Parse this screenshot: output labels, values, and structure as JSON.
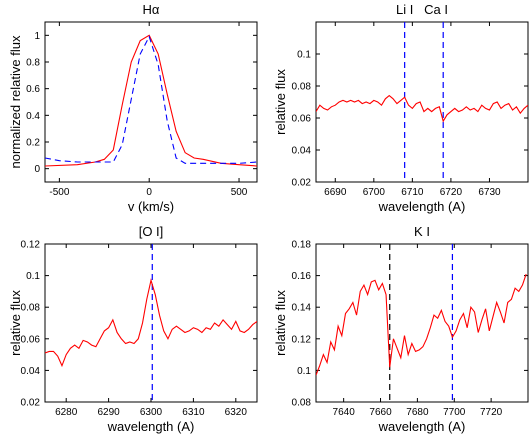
{
  "chart_data": [
    {
      "type": "line",
      "title": "Hα",
      "xlabel": "v (km/s)",
      "ylabel": "normalized relative flux",
      "xlim": [
        -580,
        600
      ],
      "ylim": [
        -0.1,
        1.1
      ],
      "xticks": [
        -500,
        0,
        500
      ],
      "yticks": [
        0,
        0.2,
        0.4,
        0.6,
        0.8,
        1
      ],
      "ytick_labels": [
        "0",
        "0.2",
        "0.4",
        "0.6",
        "0.8",
        "1"
      ],
      "vlines": [],
      "series": [
        {
          "style": "solid",
          "color": "#ff0000",
          "x": [
            -580,
            -400,
            -300,
            -250,
            -200,
            -150,
            -100,
            -50,
            0,
            50,
            100,
            150,
            200,
            250,
            300,
            400,
            500,
            600
          ],
          "y": [
            0.02,
            0.03,
            0.05,
            0.07,
            0.14,
            0.48,
            0.8,
            0.96,
            1.0,
            0.86,
            0.56,
            0.28,
            0.12,
            0.08,
            0.07,
            0.04,
            0.03,
            0.02
          ]
        },
        {
          "style": "dashed",
          "color": "#0000ff",
          "x": [
            -580,
            -500,
            -400,
            -300,
            -200,
            -150,
            -100,
            -50,
            0,
            50,
            100,
            150,
            200,
            300,
            400,
            500,
            600
          ],
          "y": [
            0.08,
            0.06,
            0.05,
            0.05,
            0.05,
            0.18,
            0.52,
            0.86,
            0.99,
            0.78,
            0.36,
            0.08,
            0.04,
            0.04,
            0.04,
            0.04,
            0.05
          ]
        }
      ]
    },
    {
      "type": "line",
      "title": "Li I   Ca I",
      "xlabel": "wavelength (A)",
      "ylabel": "relative flux",
      "xlim": [
        6685,
        6740
      ],
      "ylim": [
        0.02,
        0.12
      ],
      "xticks": [
        6690,
        6700,
        6710,
        6720,
        6730
      ],
      "yticks": [
        0.02,
        0.04,
        0.06,
        0.08,
        0.1
      ],
      "ytick_labels": [
        "0.02",
        "0.04",
        "0.06",
        "0.08",
        "0.1"
      ],
      "vlines": [
        {
          "x": 6708,
          "style": "dashed",
          "color": "#0000ff"
        },
        {
          "x": 6718,
          "style": "dashed",
          "color": "#0000ff"
        }
      ],
      "series": [
        {
          "style": "solid",
          "color": "#ff0000",
          "x": [
            6685,
            6686,
            6687,
            6688,
            6689,
            6690,
            6691,
            6692,
            6693,
            6694,
            6695,
            6696,
            6697,
            6698,
            6699,
            6700,
            6701,
            6702,
            6703,
            6704,
            6705,
            6706,
            6707,
            6708,
            6709,
            6710,
            6711,
            6712,
            6713,
            6714,
            6715,
            6716,
            6717,
            6718,
            6719,
            6720,
            6721,
            6722,
            6723,
            6724,
            6725,
            6726,
            6727,
            6728,
            6729,
            6730,
            6731,
            6732,
            6733,
            6734,
            6735,
            6736,
            6737,
            6738,
            6739,
            6740
          ],
          "y": [
            0.064,
            0.068,
            0.066,
            0.065,
            0.067,
            0.068,
            0.07,
            0.071,
            0.07,
            0.071,
            0.07,
            0.071,
            0.069,
            0.07,
            0.069,
            0.071,
            0.07,
            0.068,
            0.072,
            0.074,
            0.072,
            0.069,
            0.071,
            0.073,
            0.068,
            0.066,
            0.069,
            0.07,
            0.064,
            0.066,
            0.064,
            0.066,
            0.067,
            0.058,
            0.062,
            0.064,
            0.066,
            0.064,
            0.065,
            0.067,
            0.065,
            0.066,
            0.064,
            0.068,
            0.066,
            0.065,
            0.069,
            0.07,
            0.066,
            0.068,
            0.069,
            0.065,
            0.067,
            0.063,
            0.066,
            0.068
          ]
        }
      ]
    },
    {
      "type": "line",
      "title": "[O I]",
      "xlabel": "wavelength (A)",
      "ylabel": "relative flux",
      "xlim": [
        6275,
        6325
      ],
      "ylim": [
        0.02,
        0.12
      ],
      "xticks": [
        6280,
        6290,
        6300,
        6310,
        6320
      ],
      "yticks": [
        0.02,
        0.04,
        0.06,
        0.08,
        0.1,
        0.12
      ],
      "ytick_labels": [
        "0.02",
        "0.04",
        "0.06",
        "0.08",
        "0.1",
        "0.12"
      ],
      "vlines": [
        {
          "x": 6300.3,
          "style": "dashed",
          "color": "#0000ff"
        }
      ],
      "series": [
        {
          "style": "solid",
          "color": "#ff0000",
          "x": [
            6275,
            6276,
            6277,
            6278,
            6279,
            6280,
            6281,
            6282,
            6283,
            6284,
            6285,
            6286,
            6287,
            6288,
            6289,
            6290,
            6291,
            6292,
            6293,
            6294,
            6295,
            6296,
            6297,
            6298,
            6299,
            6300,
            6301,
            6302,
            6303,
            6304,
            6305,
            6306,
            6307,
            6308,
            6309,
            6310,
            6311,
            6312,
            6313,
            6314,
            6315,
            6316,
            6317,
            6318,
            6319,
            6320,
            6321,
            6322,
            6323,
            6324,
            6325
          ],
          "y": [
            0.051,
            0.052,
            0.052,
            0.049,
            0.043,
            0.05,
            0.054,
            0.056,
            0.054,
            0.059,
            0.058,
            0.056,
            0.055,
            0.06,
            0.065,
            0.067,
            0.072,
            0.064,
            0.06,
            0.057,
            0.058,
            0.057,
            0.06,
            0.07,
            0.085,
            0.097,
            0.088,
            0.075,
            0.065,
            0.06,
            0.066,
            0.068,
            0.066,
            0.064,
            0.065,
            0.067,
            0.066,
            0.064,
            0.067,
            0.066,
            0.07,
            0.068,
            0.072,
            0.069,
            0.066,
            0.071,
            0.065,
            0.064,
            0.066,
            0.069,
            0.071
          ]
        }
      ]
    },
    {
      "type": "line",
      "title": "K I",
      "xlabel": "wavelength (A)",
      "ylabel": "relative flux",
      "xlim": [
        7625,
        7740
      ],
      "ylim": [
        0.08,
        0.18
      ],
      "xticks": [
        7640,
        7660,
        7680,
        7700,
        7720
      ],
      "yticks": [
        0.08,
        0.1,
        0.12,
        0.14,
        0.16,
        0.18
      ],
      "ytick_labels": [
        "0.08",
        "0.1",
        "0.12",
        "0.14",
        "0.16",
        "0.18"
      ],
      "vlines": [
        {
          "x": 7665,
          "style": "dashed",
          "color": "#000000"
        },
        {
          "x": 7699,
          "style": "dashed",
          "color": "#0000ff"
        }
      ],
      "series": [
        {
          "style": "solid",
          "color": "#ff0000",
          "x": [
            7625,
            7627,
            7629,
            7631,
            7633,
            7635,
            7637,
            7639,
            7641,
            7643,
            7645,
            7647,
            7649,
            7651,
            7653,
            7655,
            7657,
            7659,
            7661,
            7663,
            7665,
            7667,
            7669,
            7671,
            7673,
            7675,
            7677,
            7679,
            7681,
            7683,
            7685,
            7687,
            7689,
            7691,
            7693,
            7695,
            7697,
            7699,
            7701,
            7703,
            7705,
            7707,
            7709,
            7711,
            7713,
            7715,
            7717,
            7719,
            7721,
            7723,
            7725,
            7727,
            7729,
            7731,
            7733,
            7735,
            7737,
            7739
          ],
          "y": [
            0.097,
            0.103,
            0.11,
            0.105,
            0.118,
            0.113,
            0.128,
            0.122,
            0.136,
            0.139,
            0.143,
            0.135,
            0.15,
            0.154,
            0.148,
            0.156,
            0.157,
            0.151,
            0.155,
            0.148,
            0.102,
            0.12,
            0.114,
            0.108,
            0.122,
            0.11,
            0.117,
            0.112,
            0.113,
            0.115,
            0.12,
            0.127,
            0.135,
            0.133,
            0.138,
            0.131,
            0.128,
            0.121,
            0.125,
            0.132,
            0.136,
            0.127,
            0.14,
            0.137,
            0.124,
            0.132,
            0.139,
            0.125,
            0.134,
            0.143,
            0.137,
            0.13,
            0.143,
            0.145,
            0.152,
            0.15,
            0.154,
            0.161
          ]
        }
      ]
    }
  ]
}
